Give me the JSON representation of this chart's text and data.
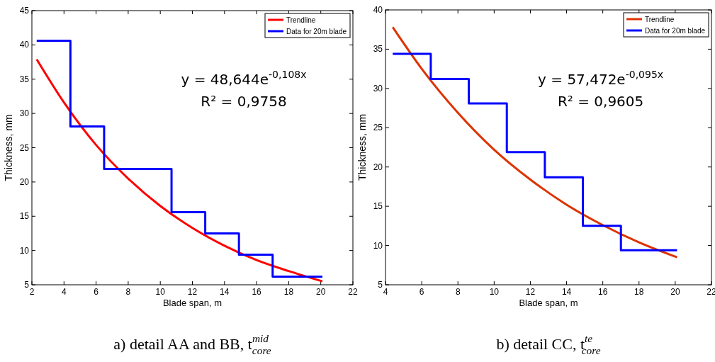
{
  "chart_data": [
    {
      "type": "line",
      "title": "a) detail AA and BB, t$^{mid}$$_{core}$",
      "xlabel": "Blade span, m",
      "ylabel": "Thickness, mm",
      "xlim": [
        2,
        22
      ],
      "xticks": [
        2,
        4,
        6,
        8,
        10,
        12,
        14,
        16,
        18,
        20,
        22
      ],
      "ylim": [
        5,
        45
      ],
      "yticks": [
        5,
        10,
        15,
        20,
        25,
        30,
        35,
        40,
        45
      ],
      "grid": false,
      "legend": "top right",
      "marker": "none",
      "line_style": "solid",
      "annotations": [
        "y = 48,644e$^{-0,108x}$",
        "R² = 0,9758"
      ],
      "series": [
        {
          "name": "Trendline",
          "color": "#ff0000",
          "x": [
            2.3,
            4,
            6,
            8,
            10,
            12,
            14,
            16,
            18,
            20.1
          ],
          "values": [
            37.9,
            31.6,
            25.4,
            20.5,
            16.5,
            13.3,
            10.7,
            8.6,
            7.0,
            5.5
          ]
        },
        {
          "name": "Data for 20m blade",
          "type": "step",
          "color": "#0000ff",
          "x": [
            2.3,
            4.4,
            6.5,
            10.7,
            12.8,
            14.9,
            17.0,
            20.1
          ],
          "values": [
            40.6,
            28.1,
            21.9,
            15.6,
            12.5,
            9.4,
            6.2,
            6.2
          ]
        }
      ]
    },
    {
      "type": "line",
      "title": "b) detail CC, t$^{te}$$_{core}$",
      "xlabel": "Blade span, m",
      "ylabel": "Thickness, mm",
      "xlim": [
        4,
        22
      ],
      "xticks": [
        4,
        6,
        8,
        10,
        12,
        14,
        16,
        18,
        20,
        22
      ],
      "ylim": [
        5,
        40
      ],
      "yticks": [
        5,
        10,
        15,
        20,
        25,
        30,
        35,
        40
      ],
      "grid": false,
      "legend": "top right",
      "marker": "none",
      "line_style": "solid",
      "annotations": [
        "y = 57,472e$^{-0,095x}$",
        "R² = 0,9605"
      ],
      "series": [
        {
          "name": "Trendline",
          "color": "#dd3300",
          "x": [
            4.4,
            6,
            8,
            10,
            12,
            14,
            16,
            18,
            20.1
          ],
          "values": [
            37.8,
            32.5,
            26.9,
            22.2,
            18.4,
            15.2,
            12.6,
            10.4,
            8.5
          ]
        },
        {
          "name": "Data for 20m blade",
          "type": "step",
          "color": "#0000ff",
          "x": [
            4.4,
            6.5,
            8.6,
            10.7,
            12.8,
            14.9,
            17.0,
            20.1
          ],
          "values": [
            34.4,
            31.2,
            28.1,
            21.9,
            18.7,
            12.5,
            9.4,
            9.4
          ]
        }
      ]
    }
  ]
}
